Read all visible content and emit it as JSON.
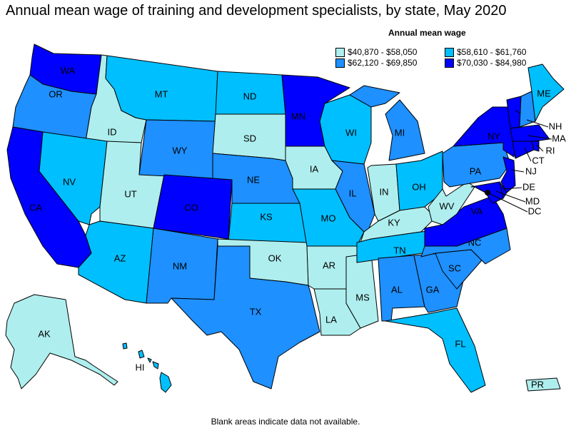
{
  "title": "Annual mean wage of training and development specialists, by state, May 2020",
  "legend": {
    "title": "Annual mean wage",
    "items": [
      {
        "label": "$40,870 - $58,050",
        "color": "#AFEEEE"
      },
      {
        "label": "$58,610 - $61,760",
        "color": "#00BFFF"
      },
      {
        "label": "$62,120 - $69,850",
        "color": "#1E90FF"
      },
      {
        "label": "$70,030 - $84,980",
        "color": "#0000FF"
      }
    ]
  },
  "states": [
    {
      "abbr": "WA",
      "cat": 3
    },
    {
      "abbr": "OR",
      "cat": 2
    },
    {
      "abbr": "CA",
      "cat": 3
    },
    {
      "abbr": "ID",
      "cat": 0
    },
    {
      "abbr": "NV",
      "cat": 1
    },
    {
      "abbr": "UT",
      "cat": 0
    },
    {
      "abbr": "AZ",
      "cat": 1
    },
    {
      "abbr": "MT",
      "cat": 1
    },
    {
      "abbr": "WY",
      "cat": 2
    },
    {
      "abbr": "CO",
      "cat": 3
    },
    {
      "abbr": "NM",
      "cat": 2
    },
    {
      "abbr": "ND",
      "cat": 1
    },
    {
      "abbr": "SD",
      "cat": 0
    },
    {
      "abbr": "NE",
      "cat": 2
    },
    {
      "abbr": "KS",
      "cat": 1
    },
    {
      "abbr": "OK",
      "cat": 0
    },
    {
      "abbr": "TX",
      "cat": 2
    },
    {
      "abbr": "MN",
      "cat": 3
    },
    {
      "abbr": "IA",
      "cat": 0
    },
    {
      "abbr": "MO",
      "cat": 1
    },
    {
      "abbr": "AR",
      "cat": 0
    },
    {
      "abbr": "LA",
      "cat": 0
    },
    {
      "abbr": "MS",
      "cat": 0
    },
    {
      "abbr": "WI",
      "cat": 1
    },
    {
      "abbr": "IL",
      "cat": 2
    },
    {
      "abbr": "MI",
      "cat": 2
    },
    {
      "abbr": "IN",
      "cat": 0
    },
    {
      "abbr": "OH",
      "cat": 1
    },
    {
      "abbr": "KY",
      "cat": 0
    },
    {
      "abbr": "TN",
      "cat": 1
    },
    {
      "abbr": "AL",
      "cat": 2
    },
    {
      "abbr": "GA",
      "cat": 2
    },
    {
      "abbr": "FL",
      "cat": 1
    },
    {
      "abbr": "SC",
      "cat": 2
    },
    {
      "abbr": "NC",
      "cat": 2
    },
    {
      "abbr": "VA",
      "cat": 3
    },
    {
      "abbr": "WV",
      "cat": 0
    },
    {
      "abbr": "PA",
      "cat": 2
    },
    {
      "abbr": "NY",
      "cat": 3
    },
    {
      "abbr": "VT",
      "cat": 3
    },
    {
      "abbr": "NH",
      "cat": 2
    },
    {
      "abbr": "ME",
      "cat": 1
    },
    {
      "abbr": "MA",
      "cat": 3
    },
    {
      "abbr": "RI",
      "cat": 3
    },
    {
      "abbr": "CT",
      "cat": 3
    },
    {
      "abbr": "NJ",
      "cat": 3
    },
    {
      "abbr": "DE",
      "cat": 3
    },
    {
      "abbr": "MD",
      "cat": 3
    },
    {
      "abbr": "DC",
      "cat": 3
    },
    {
      "abbr": "AK",
      "cat": 0
    },
    {
      "abbr": "HI",
      "cat": 1
    },
    {
      "abbr": "PR",
      "cat": 0
    }
  ],
  "note": "Blank areas indicate data not available."
}
